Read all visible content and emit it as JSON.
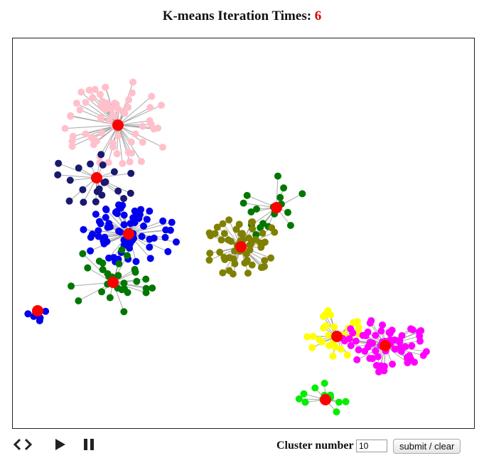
{
  "header": {
    "title_prefix": "K-means Iteration Times:",
    "iteration_count": "6"
  },
  "controls": {
    "cluster_label": "Cluster number",
    "cluster_value": "10",
    "submit_label": "submit / clear",
    "icons": [
      "expand-collapse-icon",
      "play-icon",
      "pause-icon"
    ]
  },
  "colors": {
    "centroid": "#ff0000",
    "edge": "#a8a8a8",
    "iteration_count": "#e00000"
  }
}
